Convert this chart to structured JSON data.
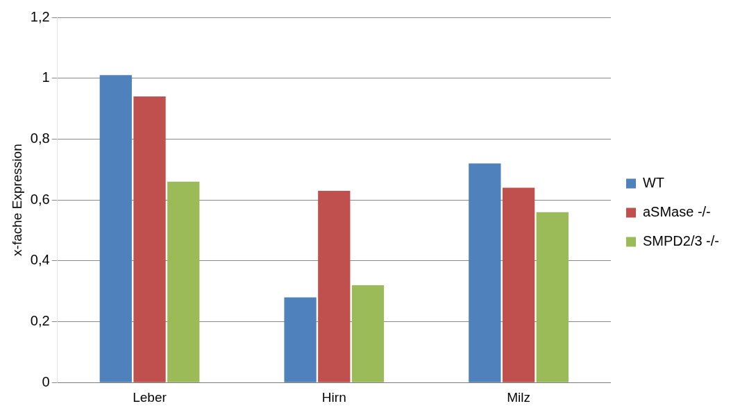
{
  "chart_data": {
    "type": "bar",
    "ylabel": "x-fache Expression",
    "categories": [
      "Leber",
      "Hirn",
      "Milz"
    ],
    "series": [
      {
        "name": "WT",
        "color": "#4f81bd",
        "values": [
          1.01,
          0.28,
          0.72
        ]
      },
      {
        "name": "aSMase -/-",
        "color": "#c0504d",
        "values": [
          0.94,
          0.63,
          0.64
        ]
      },
      {
        "name": "SMPD2/3 -/-",
        "color": "#9bbb59",
        "values": [
          0.66,
          0.32,
          0.56
        ]
      }
    ],
    "ylim": [
      0,
      1.2
    ],
    "yticks": [
      0,
      {
        "value": 0.2,
        "label": "0,2"
      },
      {
        "value": 0.4,
        "label": "0,4"
      },
      {
        "value": 0.6,
        "label": "0,6"
      },
      {
        "value": 0.8,
        "label": "0,8"
      },
      1,
      {
        "value": 1.2,
        "label": "1,2"
      }
    ],
    "grid": "y",
    "legend": "right"
  }
}
